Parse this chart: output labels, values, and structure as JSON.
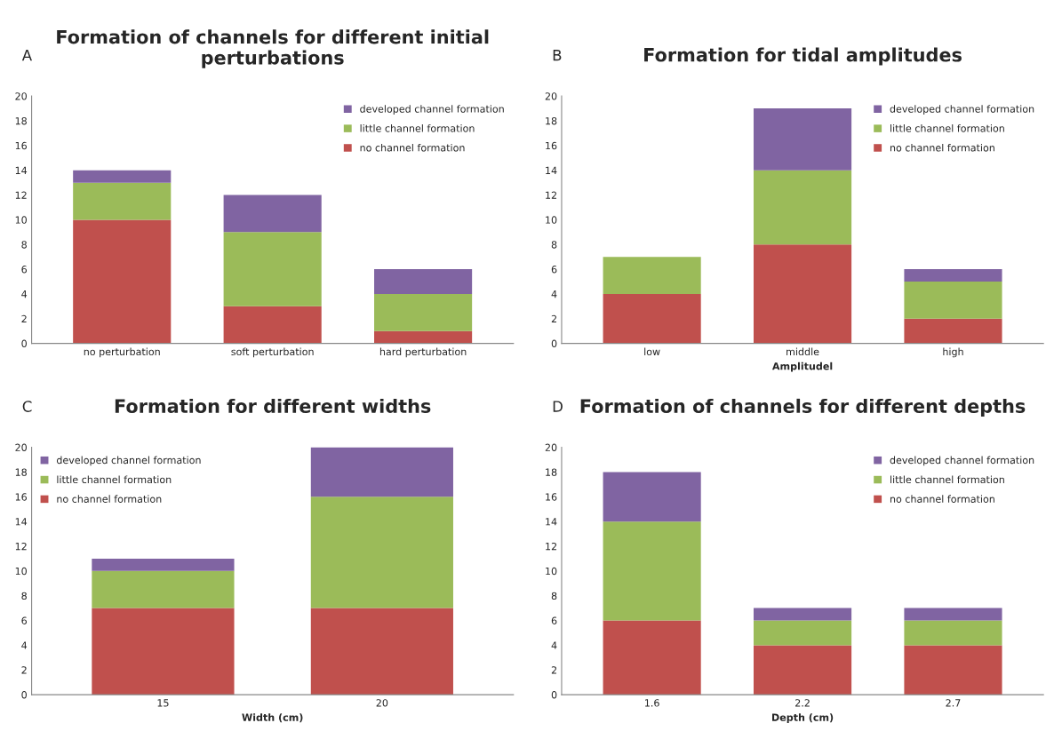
{
  "chart_data": [
    {
      "type": "bar",
      "stacked": true,
      "title": "Formation of channels for different initial perturbations",
      "annotations": [
        "A"
      ],
      "categories": [
        "no perturbation",
        "soft perturbation",
        "hard perturbation"
      ],
      "ylim": [
        0,
        20
      ],
      "yticks": [
        0,
        2,
        4,
        6,
        8,
        10,
        12,
        14,
        16,
        18,
        20
      ],
      "legend": "top right",
      "grid": false,
      "series": [
        {
          "name": "no channel formation",
          "color": "#c0504d",
          "values": [
            10,
            3,
            1
          ]
        },
        {
          "name": "little channel formation",
          "color": "#9bbb59",
          "values": [
            3,
            6,
            3
          ]
        },
        {
          "name": "developed channel formation",
          "color": "#8064a2",
          "values": [
            1,
            3,
            2
          ]
        }
      ]
    },
    {
      "type": "bar",
      "stacked": true,
      "title": "Formation for tidal amplitudes",
      "annotations": [
        "B"
      ],
      "xlabel": "Amplitudel",
      "categories": [
        "low",
        "middle",
        "high"
      ],
      "ylim": [
        0,
        20
      ],
      "yticks": [
        0,
        2,
        4,
        6,
        8,
        10,
        12,
        14,
        16,
        18,
        20
      ],
      "legend": "top right",
      "grid": false,
      "series": [
        {
          "name": "no channel formation",
          "color": "#c0504d",
          "values": [
            4,
            8,
            2
          ]
        },
        {
          "name": "little channel formation",
          "color": "#9bbb59",
          "values": [
            3,
            6,
            3
          ]
        },
        {
          "name": "developed channel formation",
          "color": "#8064a2",
          "values": [
            0,
            5,
            1
          ]
        }
      ]
    },
    {
      "type": "bar",
      "stacked": true,
      "title": "Formation for different widths",
      "annotations": [
        "C"
      ],
      "xlabel": "Width (cm)",
      "categories": [
        "15",
        "20"
      ],
      "ylim": [
        0,
        20
      ],
      "yticks": [
        0,
        2,
        4,
        6,
        8,
        10,
        12,
        14,
        16,
        18,
        20
      ],
      "legend": "top left",
      "grid": false,
      "series": [
        {
          "name": "no channel formation",
          "color": "#c0504d",
          "values": [
            7,
            7
          ]
        },
        {
          "name": "little channel formation",
          "color": "#9bbb59",
          "values": [
            3,
            9
          ]
        },
        {
          "name": "developed channel formation",
          "color": "#8064a2",
          "values": [
            1,
            4
          ]
        }
      ]
    },
    {
      "type": "bar",
      "stacked": true,
      "title": "Formation of channels for different depths",
      "annotations": [
        "D"
      ],
      "xlabel": "Depth (cm)",
      "categories": [
        "1.6",
        "2.2",
        "2.7"
      ],
      "ylim": [
        0,
        20
      ],
      "yticks": [
        0,
        2,
        4,
        6,
        8,
        10,
        12,
        14,
        16,
        18,
        20
      ],
      "legend": "top right",
      "grid": false,
      "series": [
        {
          "name": "no channel formation",
          "color": "#c0504d",
          "values": [
            6,
            4,
            4
          ]
        },
        {
          "name": "little channel formation",
          "color": "#9bbb59",
          "values": [
            8,
            2,
            2
          ]
        },
        {
          "name": "developed channel formation",
          "color": "#8064a2",
          "values": [
            4,
            1,
            1
          ]
        }
      ]
    }
  ]
}
